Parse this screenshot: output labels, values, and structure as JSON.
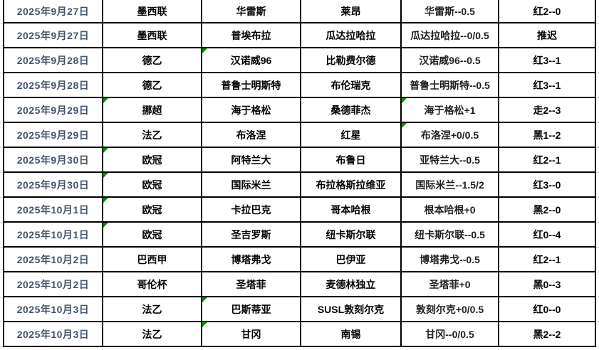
{
  "app": {
    "view": "match-results-table"
  },
  "colors": {
    "date_text": "#44546A",
    "body_text": "#000000",
    "handicap_text": "#1f1f1f",
    "border": "#000000",
    "gridline": "#d4d4d4",
    "marker_green": "#089000",
    "background": "#ffffff"
  },
  "table": {
    "rows": [
      {
        "date": "2025年9月27日",
        "league": "墨西联",
        "home": "华雷斯",
        "away": "莱昂",
        "handicap": "华雷斯--0.5",
        "result": "红2--0",
        "marks": []
      },
      {
        "date": "2025年9月27日",
        "league": "墨西联",
        "home": "普埃布拉",
        "away": "瓜达拉哈拉",
        "handicap": "瓜达拉哈拉--0/0.5",
        "result": "推迟",
        "marks": []
      },
      {
        "date": "2025年9月28日",
        "league": "德乙",
        "home": "汉诺威96",
        "away": "比勒费尔德",
        "handicap": "汉诺威96--0.5",
        "result": "红3--1",
        "marks": [
          "home"
        ]
      },
      {
        "date": "2025年9月28日",
        "league": "德乙",
        "home": "普鲁士明斯特",
        "away": "布伦瑞克",
        "handicap": "普鲁士明斯特--0.5",
        "result": "红3--1",
        "marks": []
      },
      {
        "date": "2025年9月29日",
        "league": "挪超",
        "home": "海于格松",
        "away": "桑德菲杰",
        "handicap": "海于格松+1",
        "result": "走2--3",
        "marks": [
          "league",
          "handicap"
        ]
      },
      {
        "date": "2025年9月29日",
        "league": "法乙",
        "home": "布洛涅",
        "away": "红星",
        "handicap": "布洛涅+0/0.5",
        "result": "黑1--2",
        "marks": [
          "handicap"
        ]
      },
      {
        "date": "2025年9月30日",
        "league": "欧冠",
        "home": "阿特兰大",
        "away": "布鲁日",
        "handicap": "亚特兰大--0.5",
        "result": "红2--1",
        "marks": [
          "league"
        ]
      },
      {
        "date": "2025年9月30日",
        "league": "欧冠",
        "home": "国际米兰",
        "away": "布拉格斯拉维亚",
        "handicap": "国际米兰--1.5/2",
        "result": "红3--0",
        "marks": [
          "league"
        ]
      },
      {
        "date": "2025年10月1日",
        "league": "欧冠",
        "home": "卡拉巴克",
        "away": "哥本哈根",
        "handicap": "根本哈根+0",
        "result": "黑2--0",
        "marks": [
          "league"
        ]
      },
      {
        "date": "2025年10月1日",
        "league": "欧冠",
        "home": "圣吉罗斯",
        "away": "纽卡斯尔联",
        "handicap": "纽卡斯尔联--0.5",
        "result": "红0--4",
        "marks": [
          "league"
        ]
      },
      {
        "date": "2025年10月2日",
        "league": "巴西甲",
        "home": "博塔弗戈",
        "away": "巴伊亚",
        "handicap": "博塔弗戈--0.5",
        "result": "红2--1",
        "marks": []
      },
      {
        "date": "2025年10月2日",
        "league": "哥伦杯",
        "home": "圣塔菲",
        "away": "麦德林独立",
        "handicap": "圣塔菲+0",
        "result": "黑0--3",
        "marks": []
      },
      {
        "date": "2025年10月3日",
        "league": "法乙",
        "home": "巴斯蒂亚",
        "away": "SUSL敦刻尔克",
        "handicap": "敦刻尔克+0/0.5",
        "result": "红0--0",
        "marks": [
          "home"
        ]
      },
      {
        "date": "2025年10月3日",
        "league": "法乙",
        "home": "甘冈",
        "away": "南锡",
        "handicap": "甘冈--0/0.5",
        "result": "黑2--2",
        "marks": [
          "home"
        ]
      }
    ]
  }
}
